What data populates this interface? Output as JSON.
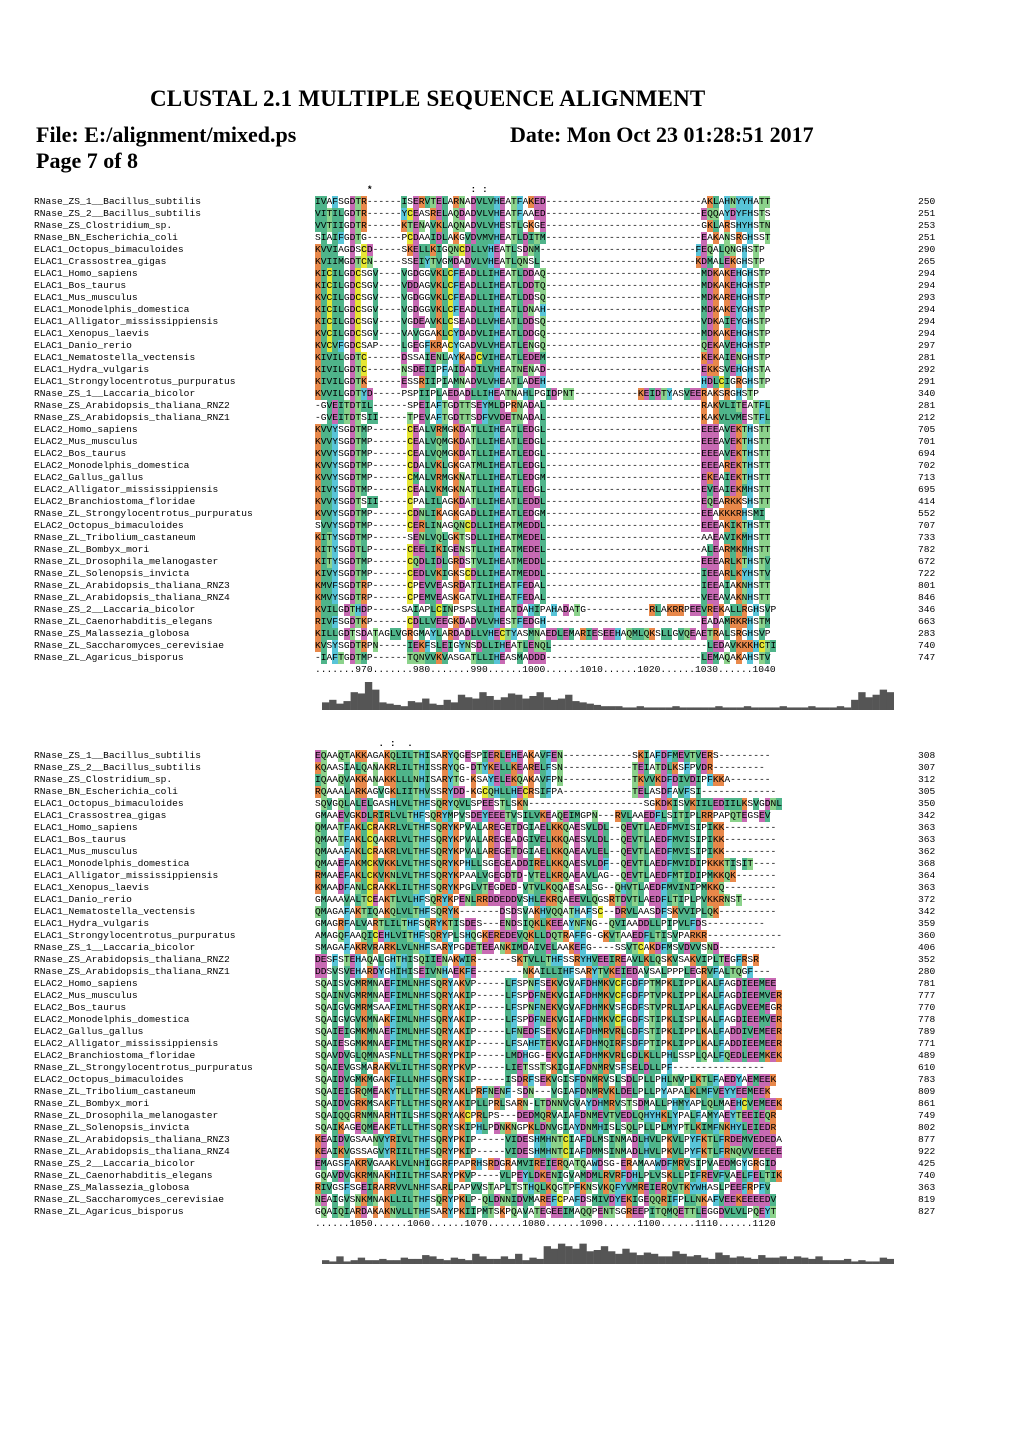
{
  "header": {
    "title": "CLUSTAL 2.1 MULTIPLE SEQUENCE ALIGNMENT",
    "file": "File: E:/alignment/mixed.ps",
    "date": "Date: Mon Oct 23 01:28:51 2017",
    "page": "Page 7 of 8"
  },
  "colors": {
    "green": "#4fb48a",
    "cyan": "#58c4d8",
    "yellow": "#e6e633",
    "magenta": "#c76ab3",
    "orange": "#e8884a",
    "lightgreen": "#8bd28b"
  },
  "blocks": [
    {
      "consensus": "         *                 : :",
      "ruler": ".......970.......980.......990......1000......1010......1020......1030......1040",
      "rows": [
        {
          "name": "RNase_ZS_1__Bacillus_subtilis",
          "seq": "IVAFSGDTR------ISERVTELARNADVLVHEATFAKED---------------------------AKLAHNYYHATT",
          "end": "250"
        },
        {
          "name": "RNase_ZS_2__Bacillus_subtilis",
          "seq": "VITILGDTR------YCEASRELAQDADVLVHEATFAAED---------------------------EQQAYDYFHSTS",
          "end": "251"
        },
        {
          "name": "RNase_ZS_Clostridium_sp.",
          "seq": "VVTIIGDTR------KTENAVKLAQNADVLVHESTLGKGE---------------------------GKLARSHYHSTN",
          "end": "253"
        },
        {
          "name": "RNase_BN_Escherichia_coli",
          "seq": "SIAIFGDTG------PCDAAIDLAKGVDVMVHEATLDITM---------------------------EAKANSRGHSST",
          "end": "251"
        },
        {
          "name": "ELAC1_Octopus_bimaculoides",
          "seq": "KVVIAGDSCD-----SKELLKIGQNCDLLVHEATLSDNM---------------------------FEQALQNGHSTP",
          "end": "290"
        },
        {
          "name": "ELAC1_Crassostrea_gigas",
          "seq": "KVIIMGDTCN-----SSEIYTVGMDADVLVHEATLQNSL---------------------------KDMALEKGHSTP",
          "end": "265"
        },
        {
          "name": "ELAC1_Homo_sapiens",
          "seq": "KICILGDCSGV----VGDGGVKLCFEADLLIHEATLDDAQ---------------------------MDKAKEHGHSTP",
          "end": "294"
        },
        {
          "name": "ELAC1_Bos_taurus",
          "seq": "KICILGDCSGV----VDDAGVKLCFEADLLIHEATLDDTQ---------------------------MDKAKEHGHSTP",
          "end": "294"
        },
        {
          "name": "ELAC1_Mus_musculus",
          "seq": "KVCILGDCSGV----VGDGGVKLCFEADLLIHEATLDDSQ---------------------------MDKAREHGHSTP",
          "end": "293"
        },
        {
          "name": "ELAC1_Monodelphis_domestica",
          "seq": "KICILGDCSGV----VGDGGVKLCFEADLLIHEATLDNAH---------------------------MDKAKEYGHSTP",
          "end": "294"
        },
        {
          "name": "ELAC1_Alligator_mississippiensis",
          "seq": "KICILGDCSGV----VGDEAVKLCSEADLLVHEATLDDSQ---------------------------VDKAIEYGHSTP",
          "end": "294"
        },
        {
          "name": "ELAC1_Xenopus_laevis",
          "seq": "KVCILGDCSGV----VAVGGAKLCYDADVLIHEATLDDGQ---------------------------MDKAKEHGHSTP",
          "end": "294"
        },
        {
          "name": "ELAC1_Danio_rerio",
          "seq": "KVCVFGDCSAP----LGEGFKRACYGADVLVHEATLENGQ---------------------------QEKAVEHGHSTP",
          "end": "297"
        },
        {
          "name": "ELAC1_Nematostella_vectensis",
          "seq": "KIVILGDTC------DSSAIENLAYKADCVIHEATLEDEM---------------------------KEKAIENGHSTP",
          "end": "281"
        },
        {
          "name": "ELAC1_Hydra_vulgaris",
          "seq": "KIVILGDTC------NSDEIIPFAIDADILVHEATNENAD---------------------------EKKSVEHGHSTA",
          "end": "292"
        },
        {
          "name": "ELAC1_Strongylocentrotus_purpuratus",
          "seq": "KIVILGDTK------ESSRIIPIAMNADVLVHEATLADEH---------------------------HDLCIGRGHSTP",
          "end": "291"
        },
        {
          "name": "RNase_ZS_1__Laccaria_bicolor",
          "seq": "KVVILGDTYD-----PSPIIPLAEDADLLIHEATNAHLPGIDPNT-----------KEIDTYASVEERAKSRGHSTP",
          "end": "340"
        },
        {
          "name": "RNase_ZS_Arabidopsis_thaliana_RNZ2",
          "seq": "-GVEITDTIL------SPEIAFTGDTTSEYMLDPRNADAL---------------------------RAKVLITEATFL",
          "end": "281"
        },
        {
          "name": "RNase_ZS_Arabidopsis_thaliana_RNZ1",
          "seq": "-GVEITDTSII-----TPEVAFTGDTTSDFVVDETNADAL---------------------------KAKVLVMESTFL",
          "end": "212"
        },
        {
          "name": "ELAC2_Homo_sapiens",
          "seq": "KVVYSGDTMP------CEALVRMGKDATLLIHEATLEDGL---------------------------EEEAVEKTHSTT",
          "end": "705"
        },
        {
          "name": "ELAC2_Mus_musculus",
          "seq": "KVVYSGDTMP------CEALVQMGKDATLLIHEATLEDGL---------------------------EEEAVEKTHSTT",
          "end": "701"
        },
        {
          "name": "ELAC2_Bos_taurus",
          "seq": "KVVYSGDTMP------CEALVQMGKDATLLIHEATLEDGL---------------------------EEEAVEKTHSTT",
          "end": "694"
        },
        {
          "name": "ELAC2_Monodelphis_domestica",
          "seq": "KVVYSGDTMP------CDALVKLGKGATMLIHEATLEDGL---------------------------EEEAREKTHSTT",
          "end": "702"
        },
        {
          "name": "ELAC2_Gallus_gallus",
          "seq": "KVVYSGDTMP------CMALVRMGKNATLLIHEATLEDGM---------------------------EKEAIEKTHSTT",
          "end": "713"
        },
        {
          "name": "ELAC2_Alligator_mississippiensis",
          "seq": "KIVYSGDTMP------CEALVKMGKNATLLIHEATLEDGL---------------------------EVEAIEKMHSTT",
          "end": "695"
        },
        {
          "name": "ELAC2_Branchiostoma_floridae",
          "seq": "KVVYSGDTSII-----CPALILAGKDATLLIHEATLEDDL---------------------------EQEARKKSHSTT",
          "end": "414"
        },
        {
          "name": "RNase_ZL_Strongylocentrotus_purpuratus",
          "seq": "KVVYSGDTMP------CDNLIKAGKGADLLIHEATLEDGM---------------------------EEAKKKRHSMI",
          "end": "552"
        },
        {
          "name": "ELAC2_Octopus_bimaculoides",
          "seq": "SVVYSGDTMP------CERLINAGQNCDLLIHEATMEDDL---------------------------EEEAKIKTHSTT",
          "end": "707"
        },
        {
          "name": "RNase_ZL_Tribolium_castaneum",
          "seq": "KITYSGDTMP------SENLVQLGKTSDLLIHEATMEDEL---------------------------AAEAVIKMHSTT",
          "end": "733"
        },
        {
          "name": "RNase_ZL_Bombyx_mori",
          "seq": "KITYSGDTLP------CEELIKIGENSTLLIHEATMEDEL---------------------------ALEARMKMHSTT",
          "end": "782"
        },
        {
          "name": "RNase_ZL_Drosophila_melanogaster",
          "seq": "KITYSGDTMP------CQDLIDLGRDSTVLIHEATMEDDL---------------------------EEEARLKTHSTV",
          "end": "672"
        },
        {
          "name": "RNase_ZL_Solenopsis_invicta",
          "seq": "KIVYSGDTMP------CEDLVKIGKSCDLLIHEATMEDDL---------------------------IEEARLKYHSTV",
          "end": "722"
        },
        {
          "name": "RNase_ZL_Arabidopsis_thaliana_RNZ3",
          "seq": "KMVFSGDTRP------CPEVVEASRDATILIHEATFEDAL---------------------------IEEAIAKNHSTT",
          "end": "801"
        },
        {
          "name": "RNase_ZL_Arabidopsis_thaliana_RNZ4",
          "seq": "KMVYSGDTRP------CPEMVEASKGATVLIHEATFEDAL---------------------------VEEAVAKNHSTT",
          "end": "846"
        },
        {
          "name": "RNase_ZS_2__Laccaria_bicolor",
          "seq": "KVILGDTHDP-----SAIAPLCINPSPSLLIHEATDAHIPAHADATG-----------RLAKRRPEEVREKALLRGHSVP",
          "end": "346"
        },
        {
          "name": "RNase_ZL_Caenorhabditis_elegans",
          "seq": "RIVFSGDTKP------CDLLVEEGKDADVLVHESTFEDGH---------------------------EADAMRKRHSTM",
          "end": "663"
        },
        {
          "name": "RNase_ZS_Malassezia_globosa",
          "seq": "KILLGDTSDATAGLVGRGMAYLARDADLLVHECTYASMNAEDLEMARIESEEHAQMLQKSLLGVQEAETRALSRGHSVP",
          "end": "283"
        },
        {
          "name": "RNase_ZL_Saccharomyces_cerevisiae",
          "seq": "KVSYSGDTRPN-----IEKFSLEIGYNSDLLIHEATLENQL---------------------------LEDAVKKKHCTI",
          "end": "740"
        },
        {
          "name": "RNase_ZL_Agaricus_bisporus",
          "seq": "-IAFTGDTMP------TQNVVKVASGATLLIHEASMADDD---------------------------LEMAQAKAHSTV",
          "end": "747"
        }
      ],
      "quality": [
        6,
        8,
        5,
        7,
        14,
        13,
        22,
        16,
        6,
        5,
        4,
        3,
        7,
        6,
        9,
        5,
        4,
        8,
        6,
        12,
        10,
        9,
        14,
        11,
        8,
        10,
        13,
        12,
        9,
        11,
        14,
        10,
        8,
        9,
        12,
        7,
        6,
        5,
        4,
        3,
        3,
        3,
        2,
        2,
        3,
        2,
        2,
        2,
        2,
        3,
        2,
        2,
        2,
        2,
        2,
        3,
        2,
        2,
        2,
        3,
        2,
        2,
        2,
        2,
        3,
        2,
        2,
        2,
        3,
        2,
        2,
        2,
        3,
        2,
        8,
        14,
        10,
        12,
        16,
        14
      ]
    },
    {
      "consensus": "           . :  .",
      "ruler": "......1050......1060......1070......1080......1090......1100......1110......1120",
      "rows": [
        {
          "name": "RNase_ZS_1__Bacillus_subtilis",
          "seq": "EQAAQTAKKAGAKQLILTHISARYQGESPIERLEHEAKAVFEN------------SKIAFDFMEVTVERS---------",
          "end": "308"
        },
        {
          "name": "RNase_ZS_2__Bacillus_subtilis",
          "seq": "KQAASIALQANAKRLILTHISSRYQG-DTYKELLKEARELFSN------------TEIATDLKSFPVDR---------",
          "end": "307"
        },
        {
          "name": "RNase_ZS_Clostridium_sp.",
          "seq": "IQAAQVAKKANAKKLLLNHISARYTG-KSAYELEKQAKAVFPN------------TKVVKDFDIVDIPFKKA-------",
          "end": "312"
        },
        {
          "name": "RNase_BN_Escherichia_coli",
          "seq": "RQAAALARKAGVGKLIITHVSSRYDD-KGCQHLLHECRSIFPA------------TELASDFAVFSI-------------",
          "end": "305"
        },
        {
          "name": "ELAC1_Octopus_bimaculoides",
          "seq": "SQVGQLALELGASHLVLTHFSQRYQVLSPEESTLSKN--------------------SGKDKISVKIILEDIILKSVGDNL",
          "end": "350"
        },
        {
          "name": "ELAC1_Crassostrea_gigas",
          "seq": "GMAAEVGKDLRIRLVLTHFSQRYMPVSDEYEEETVSILVKEAQEIMGPN---RVLAAEDFLSITIPLRRPAPQTEGSEV",
          "end": "342"
        },
        {
          "name": "ELAC1_Homo_sapiens",
          "seq": "QMAATFAKLCRAKRLVLTHFSQRYKPVALAREGETDGIAELKKQAESVLDL--QEVTLAEDFMVISIPIKK---------",
          "end": "363"
        },
        {
          "name": "ELAC1_Bos_taurus",
          "seq": "QMAATFAKLCQAKRLVLTHFSQRYKPVALAREGEADGIVELKKQAESVLDL--QEVTLAEDFMVISIPIKK---------",
          "end": "363"
        },
        {
          "name": "ELAC1_Mus_musculus",
          "seq": "QMAAAFAKLCRAKRLVLTHFSQRYKPVALAREGETDGIAELKKQAEAVLEL--QEVTLAEDFMVISIPIKK---------",
          "end": "362"
        },
        {
          "name": "ELAC1_Monodelphis_domestica",
          "seq": "QMAAEFAKMCKVKKLVLTHFSQRYKPHLLSGEGEADDIRELKKQAESVLDF--QEVTLAEDFMVIDIPKKKTISIT----",
          "end": "368"
        },
        {
          "name": "ELAC1_Alligator_mississippiensis",
          "seq": "RMAAEFAKLCKVKNLVLTHFSQRYKPAALVGEGDTD-VTELKRQAEAVLAG--QEVTLAEDFMTIDIPMKKQK-------",
          "end": "364"
        },
        {
          "name": "ELAC1_Xenopus_laevis",
          "seq": "KMAADFANLCRAKKLILTHFSQRYKPGLVTEGDED-VTVLKQQAESALSG--QHVTLAEDFMVINIPMKKQ---------",
          "end": "363"
        },
        {
          "name": "ELAC1_Danio_rerio",
          "seq": "GMAAAVALTCEAKTLVLHFSQRYKPENLRRDDEDDVSHLEKRQAEEVLQGSRTDVTLAEDFLTIPLPVKKRNST------",
          "end": "372"
        },
        {
          "name": "ELAC1_Nematostella_vectensis",
          "seq": "QMAGAFAKTIQAKQLVLTHFSQRYK-------DSDSVAKHVQQATHAFSC--DRVLAASDFSKVVIPLQK----------",
          "end": "342"
        },
        {
          "name": "ELAC1_Hydra_vulgaris",
          "seq": "GMAGRFALVARTLILTHFSQRYKTISDES---ENDSIQKLKEEAYNFNG--QVIAADDLLPIPVLFDS----------",
          "end": "359"
        },
        {
          "name": "ELAC1_Strongylocentrotus_purpuratus",
          "seq": "AMAGQFAAQICEHLVITHFSQRYPLSHQGKEREDEVQKLLDQTRAFFG-GKVTAAEDFLTISVPARKR-------------",
          "end": "360"
        },
        {
          "name": "RNase_ZS_1__Laccaria_bicolor",
          "seq": "SMAGAFAKRVRARKLVLNHFSARYPGDETEEANKIMDAIVELAAKEFG----SSVTCAKDFMSVDVVSND----------",
          "end": "406"
        },
        {
          "name": "RNase_ZS_Arabidopsis_thaliana_RNZ2",
          "seq": "DESFSTEHAQALGHTHISQIIENAKWIR------SKTVLLTHFSSRYHVEEIREAVLKLQSKVSAKVIPLTEGFRSR",
          "end": "352"
        },
        {
          "name": "RNase_ZS_Arabidopsis_thaliana_RNZ1",
          "seq": "DDSVSVEHARDYGHIHISEIVNHAEKFE--------NKAILLIHFSARYTVKEIEDAVSALPPPLEGRVFALTQGF---",
          "end": "280"
        },
        {
          "name": "ELAC2_Homo_sapiens",
          "seq": "SQAISVGMRMNAEFIMLNHFSQRYAKVP-----LFSPNFSEKVGVAFDHMKVCFGDFPTMPKLIPPLKALFAGDIEEMEE",
          "end": "781"
        },
        {
          "name": "ELAC2_Mus_musculus",
          "seq": "SQAINVGMRMNAEFIMLNHFSQRYAKIP-----LFSPDFNEKVGIAFDHMKVCFGDFPTVPKLIPPLKALFAGDIEEMVER",
          "end": "777"
        },
        {
          "name": "ELAC2_Bos_taurus",
          "seq": "SQAIGVGMRMSAAFIMLTHFSQRYAKIP-----LFSPNFNEKVGVAFDHMKVSFGDFSTVPRLIAPLKALFAGDVEEMEGR",
          "end": "770"
        },
        {
          "name": "ELAC2_Monodelphis_domestica",
          "seq": "SQAIGVGVKMNAKFIMLNHFSQRYAKIP-----LFSPDFNEKVGIAFDHMKVCFGDFSTIPKLISPLKALFAGDIEEMVER",
          "end": "778"
        },
        {
          "name": "ELAC2_Gallus_gallus",
          "seq": "SQAIEIGMKMNAEFIMLNHFSQRYAKIP-----LFNEDFSEKVGIAFDHMRVRLGDFSTIPKLIPPLKALFADDIVEMEER",
          "end": "789"
        },
        {
          "name": "ELAC2_Alligator_mississippiensis",
          "seq": "SQAIESGMKMNAEFIMLTHFSQRYAKIP-----LFSAHFTEKVGIAFDHMQIRFSDFPTIPKLIPPLKALFADDIEEMEER",
          "end": "771"
        },
        {
          "name": "ELAC2_Branchiostoma_floridae",
          "seq": "SQAVDVGLQMNASFNLLTHFSQRYPKIP-----LMDHGG-EKVGIAFDHMKVRLGDLKLLPHLSSPLQALFQEDLEEMKEK",
          "end": "489"
        },
        {
          "name": "RNase_ZL_Strongylocentrotus_purpuratus",
          "seq": "SQAIEVGSMARAKVLILTHFSQRYPKVP-----LIETSSTSKIGIAFDNMRVSFSELDLLPF----------------",
          "end": "610"
        },
        {
          "name": "ELAC2_Octopus_bimaculoides",
          "seq": "SQAIDVGMKMGAKFILLNHFSQRYSKIP-----ISDRFSEKVGISFDNMRVSLSDLPLLPHLNVPLKTLFAEDYAEMEEK",
          "end": "783"
        },
        {
          "name": "RNase_ZL_Tribolium_castaneum",
          "seq": "SQAIEIGRQMEAKYTLLTHFSQRYAKLPRFNENF-SDN---VGIAFDNMRVKLDELPLLPYAPALKLMFVEYYEEMEEK",
          "end": "809"
        },
        {
          "name": "RNase_ZL_Bombyx_mori",
          "seq": "SQAIDVGRKMSAKFTLLTHFSQRYAKIPLLPRLSARN-LTDNNVGVAYDHMRVSTSDMALLPHMYAPLQLMAEHCVEMEEK",
          "end": "861"
        },
        {
          "name": "RNase_ZL_Drosophila_melanogaster",
          "seq": "SQAIQQGRNMNARHTILSHFSQRYAKCPRLPS---DEDMQRVAIAFDNMEVTVEDLQHYHKLYPALFAMYAEYTEEIEQR",
          "end": "749"
        },
        {
          "name": "RNase_ZL_Solenopsis_invicta",
          "seq": "SQAIKAGEQMEAKFTLLTHFSQRYSKIPHLPDNKNGPKLDNVGIAYDNMHISLSQLPLLPLMYPTLKIMFNKHYLEIEDR",
          "end": "802"
        },
        {
          "name": "RNase_ZL_Arabidopsis_thaliana_RNZ3",
          "seq": "KEAIDVGSAANVYRIVLTHFSQRYPKIP-----VIDESHMHNTCIAFDLMSINMADLHVLPKVLPYFKTLFRDEMVEDEDA",
          "end": "877"
        },
        {
          "name": "RNase_ZL_Arabidopsis_thaliana_RNZ4",
          "seq": "KEAIKVGSSAGVYRIILTHFSQRYPKIP-----VIDESHMHNTCIAFDMMSINMADLHVLPKVLPYFKTLFRNQVVEEEEE",
          "end": "922"
        },
        {
          "name": "RNase_ZS_2__Laccaria_bicolor",
          "seq": "EMAGSFAKRVGAAKLVLNHIGGRFPAPRHSRDGRAMVIREIERQATQAWDSG-ERAMAAWDFMRVSIPVAEDMGYGRGID",
          "end": "425"
        },
        {
          "name": "RNase_ZL_Caenorhabditis_elegans",
          "seq": "GQAVDVGKRMNAKHIILTHFSARYPKVP----VLPEYLDKENIGVAMDMLRVRFDHLPLVSKLLPIFREVFVAELFELTIK",
          "end": "740"
        },
        {
          "name": "RNase_ZS_Malassezia_globosa",
          "seq": "RIVGSFSGEIRARRVVLNHFSARLPAPVVSTAPLTSTHQLKQGTPFKNSVKQFYVMREIERQVTKYWHASLPEEFRPFV",
          "end": "363"
        },
        {
          "name": "RNase_ZL_Saccharomyces_cerevisiae",
          "seq": "NEAIGVSNKMNAKLLILTHFSQRYPKLP-QLDNNIDVMAREFCPAFDSMIVDYEKIGEQQRIFPLLNKAFVEEKEEEEDV",
          "end": "819"
        },
        {
          "name": "RNase_ZL_Agaricus_bisporus",
          "seq": "GQAIQIARDAKAKNVLLTHFSARYPKIIPMTSKPQAVATEGEEIMAQQPENTSGREEPITQMQETTLEGGDVLVLPQEYT",
          "end": "827"
        }
      ],
      "quality": [
        3,
        2,
        6,
        2,
        3,
        5,
        3,
        3,
        4,
        3,
        3,
        5,
        4,
        4,
        7,
        6,
        4,
        3,
        5,
        4,
        3,
        8,
        6,
        4,
        4,
        6,
        4,
        8,
        3,
        5,
        4,
        14,
        12,
        16,
        14,
        12,
        16,
        10,
        11,
        14,
        10,
        8,
        12,
        9,
        7,
        9,
        8,
        6,
        6,
        10,
        8,
        6,
        7,
        5,
        4,
        9,
        7,
        5,
        6,
        5,
        4,
        7,
        5,
        5,
        6,
        4,
        6,
        5,
        4,
        6,
        3,
        3,
        3,
        4,
        2,
        3,
        2,
        2,
        5,
        4
      ]
    }
  ]
}
